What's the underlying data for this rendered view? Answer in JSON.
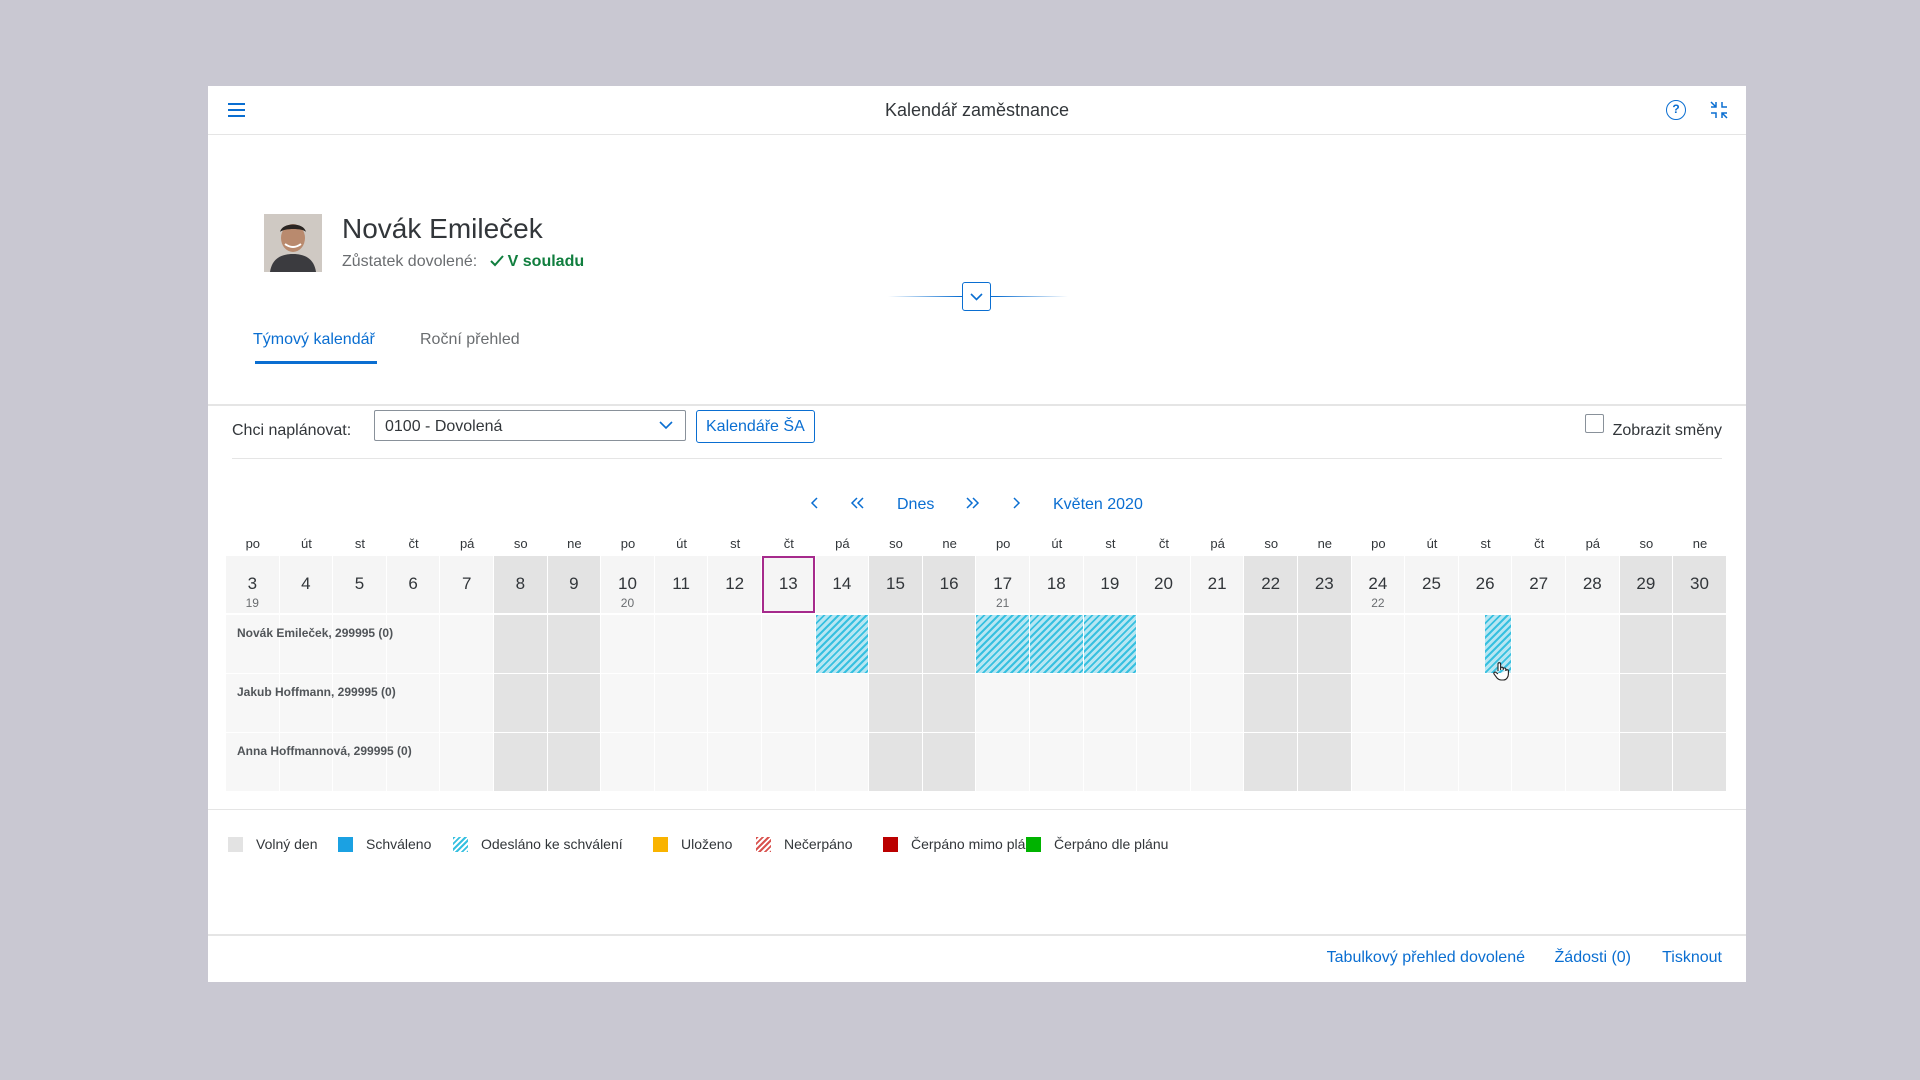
{
  "shell": {
    "title": "Kalendář zaměstnance"
  },
  "employee": {
    "name": "Novák Emileček",
    "balance_label": "Zůstatek dovolené:",
    "balance_status": "V souladu"
  },
  "tabs": [
    {
      "label": "Týmový kalendář"
    },
    {
      "label": "Roční přehled"
    }
  ],
  "toolbar": {
    "plan_label": "Chci naplánovat:",
    "plan_value": "0100 - Dovolená",
    "calendars_button": "Kalendáře ŠA",
    "show_shifts_label": "Zobrazit směny"
  },
  "nav": {
    "today": "Dnes",
    "month": "Květen 2020"
  },
  "calendar": {
    "days": [
      {
        "wd": "po",
        "d": "3",
        "wk": "19",
        "we": false
      },
      {
        "wd": "út",
        "d": "4",
        "wk": "",
        "we": false
      },
      {
        "wd": "st",
        "d": "5",
        "wk": "",
        "we": false
      },
      {
        "wd": "čt",
        "d": "6",
        "wk": "",
        "we": false
      },
      {
        "wd": "pá",
        "d": "7",
        "wk": "",
        "we": false
      },
      {
        "wd": "so",
        "d": "8",
        "wk": "",
        "we": true
      },
      {
        "wd": "ne",
        "d": "9",
        "wk": "",
        "we": true
      },
      {
        "wd": "po",
        "d": "10",
        "wk": "20",
        "we": false
      },
      {
        "wd": "út",
        "d": "11",
        "wk": "",
        "we": false
      },
      {
        "wd": "st",
        "d": "12",
        "wk": "",
        "we": false
      },
      {
        "wd": "čt",
        "d": "13",
        "wk": "",
        "we": false,
        "today": true
      },
      {
        "wd": "pá",
        "d": "14",
        "wk": "",
        "we": false
      },
      {
        "wd": "so",
        "d": "15",
        "wk": "",
        "we": true
      },
      {
        "wd": "ne",
        "d": "16",
        "wk": "",
        "we": true
      },
      {
        "wd": "po",
        "d": "17",
        "wk": "21",
        "we": false
      },
      {
        "wd": "út",
        "d": "18",
        "wk": "",
        "we": false
      },
      {
        "wd": "st",
        "d": "19",
        "wk": "",
        "we": false
      },
      {
        "wd": "čt",
        "d": "20",
        "wk": "",
        "we": false
      },
      {
        "wd": "pá",
        "d": "21",
        "wk": "",
        "we": false
      },
      {
        "wd": "so",
        "d": "22",
        "wk": "",
        "we": true
      },
      {
        "wd": "ne",
        "d": "23",
        "wk": "",
        "we": true
      },
      {
        "wd": "po",
        "d": "24",
        "wk": "22",
        "we": false
      },
      {
        "wd": "út",
        "d": "25",
        "wk": "",
        "we": false
      },
      {
        "wd": "st",
        "d": "26",
        "wk": "",
        "we": false
      },
      {
        "wd": "čt",
        "d": "27",
        "wk": "",
        "we": false
      },
      {
        "wd": "pá",
        "d": "28",
        "wk": "",
        "we": false
      },
      {
        "wd": "so",
        "d": "29",
        "wk": "",
        "we": true
      },
      {
        "wd": "ne",
        "d": "30",
        "wk": "",
        "we": true
      }
    ],
    "rows": [
      {
        "name": "Novák Emileček, 299995 (0)",
        "submitted": [
          "14",
          "17",
          "18",
          "19",
          "26"
        ]
      },
      {
        "name": "Jakub Hoffmann, 299995 (0)",
        "submitted": []
      },
      {
        "name": "Anna Hoffmannová, 299995 (0)",
        "submitted": []
      }
    ]
  },
  "legend": [
    {
      "label": "Volný den",
      "color": "#e3e3e3",
      "style": "solid"
    },
    {
      "label": "Schváleno",
      "color": "#1ba1e2",
      "style": "solid"
    },
    {
      "label": "Odesláno ke schválení",
      "color": "#37c0e0",
      "style": "hatch"
    },
    {
      "label": "Uloženo",
      "color": "#f9b300",
      "style": "solid"
    },
    {
      "label": "Nečerpáno",
      "color": "#d9534f",
      "style": "hatch"
    },
    {
      "label": "Čerpáno mimo plán",
      "color": "#bb0000",
      "style": "solid"
    },
    {
      "label": "Čerpáno dle plánu",
      "color": "#00b300",
      "style": "solid"
    }
  ],
  "footer": {
    "table_overview": "Tabulkový přehled dovolené",
    "requests": "Žádosti (0)",
    "print": "Tisknout"
  },
  "icons": [
    "menu-icon",
    "help-icon",
    "exit-fullscreen-icon",
    "chevron-down-icon",
    "chevron-left-icon",
    "double-chevron-left-icon",
    "double-chevron-right-icon",
    "chevron-right-icon",
    "checkmark-icon",
    "hand-cursor-icon"
  ]
}
